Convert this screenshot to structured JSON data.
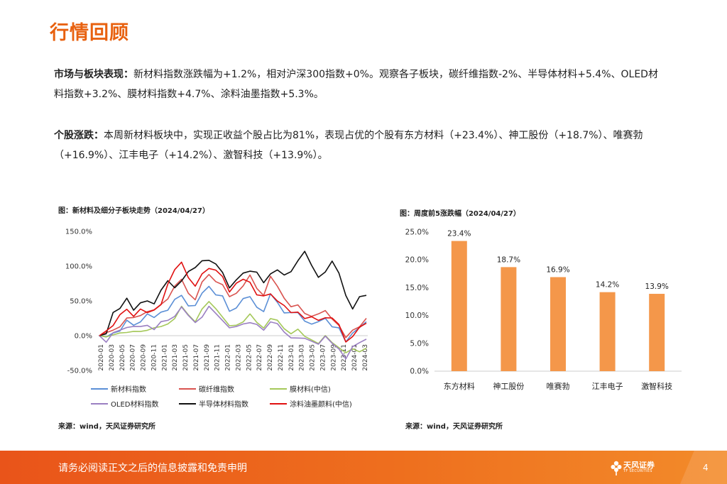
{
  "page": {
    "title": "行情回顾",
    "para1_label": "市场与板块表现：",
    "para1_text": "新材料指数涨跌幅为+1.2%，相对沪深300指数+0%。观察各子板块，碳纤维指数-2%、半导体材料+5.4%、OLED材料指数+3.2%、膜材料指数+4.7%、涂料油墨指数+5.3%。",
    "para2_label": "个股涨跌：",
    "para2_text": "本周新材料板块中，实现正收益个股占比为81%，表现占优的个股有东方材料（+23.4%）、神工股份（+18.7%）、唯赛勃（+16.9%）、江丰电子（+14.2%）、激智科技（+13.9%）。",
    "footer_disclaimer": "请务必阅读正文之后的信息披露和免责申明",
    "logo_text": "天风证券",
    "logo_sub": "TF SECURITIES",
    "page_number": "4"
  },
  "colors": {
    "brand": "#e8610f",
    "bar": "#f4974a",
    "line_new_material": "#5b8fd6",
    "line_carbon": "#d9534f",
    "line_membrane": "#a5c85a",
    "line_oled": "#9a7fc2",
    "line_semiconductor": "#111111",
    "line_coating": "#e01010"
  },
  "chart_data": [
    {
      "type": "line",
      "caption": "图：新材料及细分子板块走势（2024/04/27）",
      "source": "来源：wind，天风证券研究所",
      "ylim": [
        -50,
        150
      ],
      "yticks": [
        "-50.0%",
        "0.0%",
        "50.0%",
        "100.0%",
        "150.0%"
      ],
      "ytick_values": [
        -50,
        0,
        50,
        100,
        150
      ],
      "xticks": [
        "2020-01",
        "2020-03",
        "2020-05",
        "2020-07",
        "2020-09",
        "2020-11",
        "2021-01",
        "2021-03",
        "2021-05",
        "2021-07",
        "2021-09",
        "2021-11",
        "2022-01",
        "2022-03",
        "2022-05",
        "2022-07",
        "2022-09",
        "2022-11",
        "2023-01",
        "2023-03",
        "2023-05",
        "2023-07",
        "2023-09",
        "2023-11",
        "2024-01",
        "2024-03"
      ],
      "series": [
        {
          "name": "新材料指数",
          "key": "line_new_material",
          "values": [
            0,
            -3,
            5,
            10,
            20,
            15,
            22,
            28,
            25,
            35,
            40,
            50,
            58,
            45,
            40,
            60,
            72,
            62,
            55,
            35,
            42,
            50,
            55,
            42,
            38,
            58,
            48,
            35,
            30,
            32,
            22,
            20,
            18,
            25,
            15,
            8,
            -10,
            5,
            15,
            20
          ]
        },
        {
          "name": "碳纤维指数",
          "key": "line_carbon",
          "values": [
            0,
            2,
            8,
            15,
            22,
            25,
            30,
            38,
            35,
            45,
            55,
            68,
            80,
            62,
            55,
            75,
            88,
            80,
            70,
            55,
            62,
            75,
            85,
            68,
            60,
            82,
            70,
            55,
            45,
            42,
            32,
            30,
            28,
            35,
            25,
            18,
            -5,
            8,
            15,
            25
          ]
        },
        {
          "name": "膜材料(中信)",
          "key": "line_membrane",
          "values": [
            0,
            -5,
            0,
            5,
            8,
            4,
            6,
            10,
            8,
            12,
            18,
            28,
            40,
            30,
            22,
            35,
            48,
            40,
            30,
            12,
            15,
            22,
            28,
            18,
            12,
            28,
            20,
            10,
            5,
            6,
            -2,
            -5,
            -8,
            -2,
            -10,
            -15,
            -28,
            -20,
            -22,
            -18
          ]
        },
        {
          "name": "OLED材料指数",
          "key": "line_oled",
          "values": [
            0,
            -6,
            2,
            8,
            14,
            10,
            12,
            16,
            12,
            18,
            22,
            30,
            38,
            28,
            20,
            30,
            40,
            32,
            24,
            8,
            12,
            18,
            22,
            14,
            8,
            22,
            14,
            4,
            -2,
            0,
            -6,
            -8,
            -10,
            -4,
            -12,
            -18,
            -30,
            -18,
            -10,
            -5
          ]
        },
        {
          "name": "半导体材料指数",
          "key": "line_semiconductor",
          "values": [
            0,
            5,
            30,
            38,
            55,
            40,
            45,
            50,
            48,
            62,
            78,
            70,
            82,
            90,
            98,
            110,
            105,
            102,
            92,
            72,
            78,
            90,
            95,
            88,
            75,
            90,
            98,
            85,
            92,
            110,
            118,
            100,
            85,
            95,
            105,
            90,
            60,
            35,
            55,
            58
          ]
        },
        {
          "name": "涂料油墨颜料(中信)",
          "key": "line_coating",
          "values": [
            0,
            8,
            18,
            28,
            38,
            30,
            35,
            32,
            38,
            48,
            72,
            95,
            108,
            80,
            70,
            90,
            100,
            92,
            85,
            65,
            72,
            80,
            78,
            62,
            55,
            60,
            52,
            40,
            32,
            35,
            28,
            25,
            22,
            28,
            22,
            15,
            -8,
            2,
            10,
            18
          ]
        }
      ]
    },
    {
      "type": "bar",
      "caption": "图：周度前5涨跌幅（2024/04/27）",
      "source": "来源：wind，天风证券研究所",
      "categories": [
        "东方材料",
        "神工股份",
        "唯赛勃",
        "江丰电子",
        "激智科技"
      ],
      "values": [
        23.4,
        18.7,
        16.9,
        14.2,
        13.9
      ],
      "labels": [
        "23.4%",
        "18.7%",
        "16.9%",
        "14.2%",
        "13.9%"
      ],
      "ylim": [
        0,
        25
      ],
      "yticks": [
        "0.0%",
        "5.0%",
        "10.0%",
        "15.0%",
        "20.0%",
        "25.0%"
      ],
      "ytick_values": [
        0,
        5,
        10,
        15,
        20,
        25
      ]
    }
  ]
}
